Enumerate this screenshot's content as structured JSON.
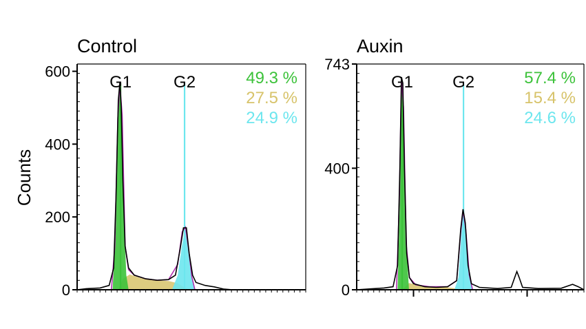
{
  "ylabel": "Counts",
  "colors": {
    "g1": "#3cc23a",
    "s": "#d7c36a",
    "g2": "#6de6ee",
    "marker": "#6de6ee",
    "model_outline": "#b030b0",
    "histogram": "#000000",
    "g1_line": "#3cc23a"
  },
  "chart_data": [
    {
      "type": "area",
      "title": "Control",
      "ylabel": "Counts",
      "ylim": [
        0,
        620
      ],
      "yticks": [
        0,
        200,
        400,
        600
      ],
      "ytick_labels": [
        "0",
        "200",
        "400",
        "600"
      ],
      "xlim": [
        0,
        1000
      ],
      "x_tick_labels": [],
      "markers": [
        {
          "label": "G1",
          "x": 190
        },
        {
          "label": "G2",
          "x": 470
        }
      ],
      "phase_percentages": [
        {
          "phase": "G1",
          "value": "49.3 %"
        },
        {
          "phase": "S",
          "value": "27.5 %"
        },
        {
          "phase": "G2",
          "value": "24.9 %"
        }
      ],
      "histogram": [
        [
          0,
          0
        ],
        [
          40,
          3
        ],
        [
          100,
          5
        ],
        [
          140,
          12
        ],
        [
          160,
          60
        ],
        [
          170,
          250
        ],
        [
          180,
          520
        ],
        [
          187,
          570
        ],
        [
          193,
          500
        ],
        [
          200,
          300
        ],
        [
          210,
          120
        ],
        [
          225,
          60
        ],
        [
          250,
          40
        ],
        [
          300,
          30
        ],
        [
          350,
          26
        ],
        [
          400,
          28
        ],
        [
          430,
          40
        ],
        [
          450,
          110
        ],
        [
          465,
          170
        ],
        [
          478,
          170
        ],
        [
          490,
          100
        ],
        [
          505,
          40
        ],
        [
          520,
          20
        ],
        [
          560,
          12
        ],
        [
          600,
          8
        ],
        [
          640,
          2
        ],
        [
          680,
          0
        ],
        [
          1000,
          0
        ]
      ],
      "model_fit": [
        [
          150,
          0
        ],
        [
          165,
          120
        ],
        [
          178,
          470
        ],
        [
          187,
          565
        ],
        [
          197,
          480
        ],
        [
          210,
          120
        ],
        [
          225,
          55
        ],
        [
          250,
          40
        ],
        [
          300,
          30
        ],
        [
          350,
          26
        ],
        [
          400,
          28
        ],
        [
          440,
          70
        ],
        [
          460,
          160
        ],
        [
          474,
          172
        ],
        [
          488,
          110
        ],
        [
          502,
          35
        ],
        [
          515,
          0
        ]
      ],
      "components": {
        "G1": [
          [
            155,
            0
          ],
          [
            168,
            150
          ],
          [
            180,
            470
          ],
          [
            187,
            560
          ],
          [
            195,
            460
          ],
          [
            205,
            200
          ],
          [
            215,
            40
          ],
          [
            225,
            0
          ]
        ],
        "S": [
          [
            180,
            0
          ],
          [
            200,
            30
          ],
          [
            230,
            42
          ],
          [
            280,
            32
          ],
          [
            340,
            26
          ],
          [
            400,
            24
          ],
          [
            440,
            18
          ],
          [
            470,
            6
          ],
          [
            490,
            0
          ]
        ],
        "G2": [
          [
            415,
            0
          ],
          [
            440,
            40
          ],
          [
            458,
            120
          ],
          [
            472,
            168
          ],
          [
            486,
            110
          ],
          [
            500,
            40
          ],
          [
            515,
            0
          ]
        ]
      }
    },
    {
      "type": "area",
      "title": "Auxin",
      "ylabel": "",
      "ylim": [
        0,
        743
      ],
      "yticks": [
        0,
        400,
        743
      ],
      "ytick_labels": [
        "0",
        "400",
        "743"
      ],
      "xlim": [
        0,
        1000
      ],
      "x_tick_labels": [],
      "markers": [
        {
          "label": "G1",
          "x": 200
        },
        {
          "label": "G2",
          "x": 470
        }
      ],
      "phase_percentages": [
        {
          "phase": "G1",
          "value": "57.4 %"
        },
        {
          "phase": "S",
          "value": "15.4 %"
        },
        {
          "phase": "G2",
          "value": "24.6 %"
        }
      ],
      "histogram": [
        [
          0,
          0
        ],
        [
          60,
          3
        ],
        [
          120,
          6
        ],
        [
          160,
          10
        ],
        [
          180,
          80
        ],
        [
          190,
          400
        ],
        [
          197,
          700
        ],
        [
          203,
          680
        ],
        [
          210,
          400
        ],
        [
          220,
          120
        ],
        [
          232,
          40
        ],
        [
          250,
          20
        ],
        [
          300,
          10
        ],
        [
          350,
          8
        ],
        [
          400,
          10
        ],
        [
          440,
          30
        ],
        [
          458,
          200
        ],
        [
          468,
          265
        ],
        [
          478,
          220
        ],
        [
          490,
          80
        ],
        [
          505,
          20
        ],
        [
          540,
          8
        ],
        [
          620,
          4
        ],
        [
          680,
          8
        ],
        [
          695,
          40
        ],
        [
          705,
          60
        ],
        [
          715,
          40
        ],
        [
          730,
          8
        ],
        [
          800,
          4
        ],
        [
          900,
          5
        ],
        [
          950,
          18
        ],
        [
          975,
          10
        ],
        [
          1000,
          0
        ]
      ],
      "model_fit": [
        [
          175,
          0
        ],
        [
          188,
          300
        ],
        [
          197,
          690
        ],
        [
          206,
          600
        ],
        [
          218,
          150
        ],
        [
          232,
          40
        ],
        [
          260,
          16
        ],
        [
          320,
          10
        ],
        [
          400,
          10
        ],
        [
          440,
          30
        ],
        [
          458,
          190
        ],
        [
          468,
          260
        ],
        [
          480,
          200
        ],
        [
          495,
          50
        ],
        [
          510,
          0
        ]
      ],
      "components": {
        "G1": [
          [
            180,
            0
          ],
          [
            190,
            300
          ],
          [
            197,
            690
          ],
          [
            205,
            600
          ],
          [
            215,
            200
          ],
          [
            230,
            0
          ]
        ],
        "S": [
          [
            200,
            0
          ],
          [
            230,
            22
          ],
          [
            280,
            14
          ],
          [
            340,
            10
          ],
          [
            400,
            8
          ],
          [
            440,
            4
          ],
          [
            460,
            0
          ]
        ],
        "G2": [
          [
            430,
            0
          ],
          [
            448,
            40
          ],
          [
            460,
            180
          ],
          [
            468,
            255
          ],
          [
            478,
            210
          ],
          [
            492,
            60
          ],
          [
            508,
            0
          ]
        ]
      }
    }
  ]
}
